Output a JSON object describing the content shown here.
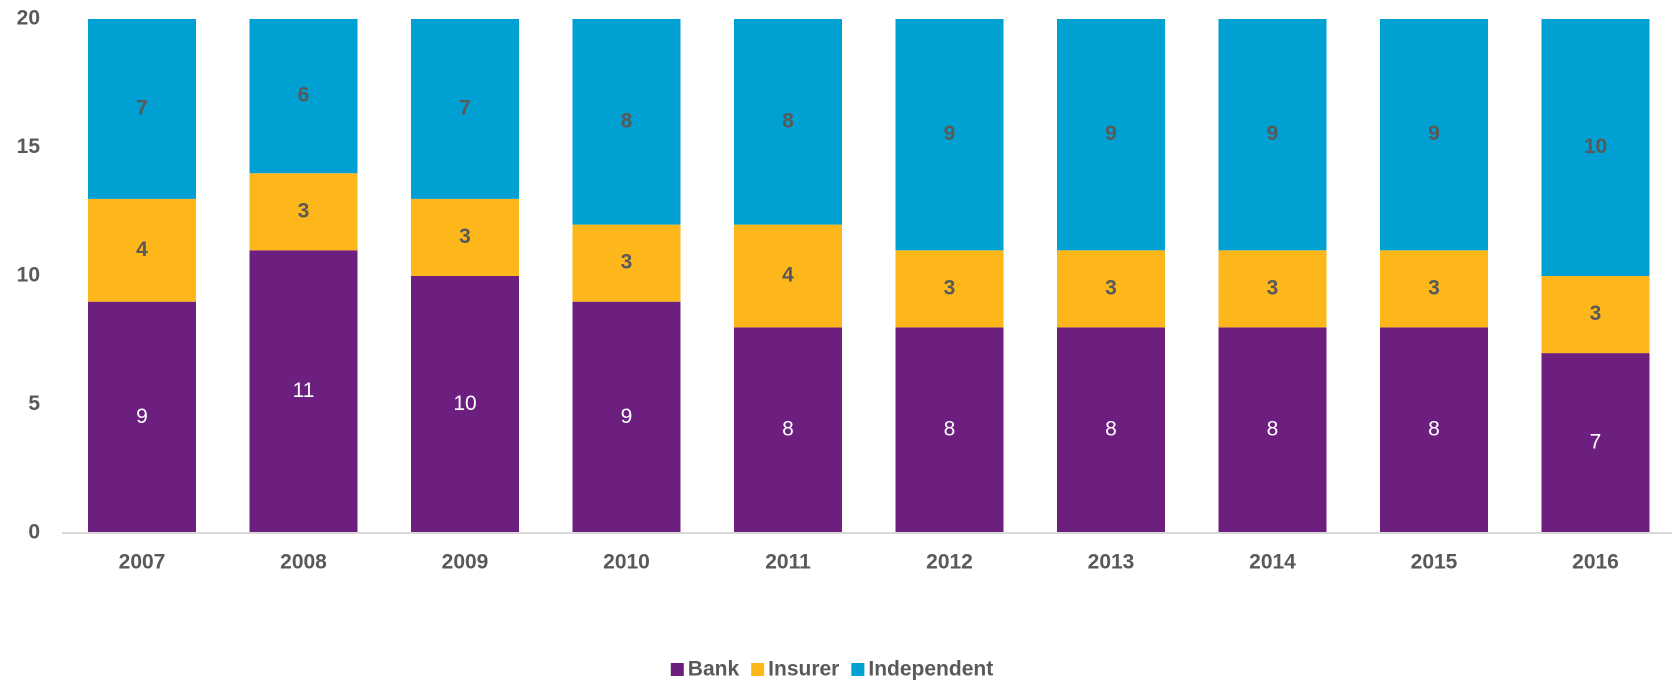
{
  "chart_data": {
    "type": "stacked_bar",
    "categories": [
      "2007",
      "2008",
      "2009",
      "2010",
      "2011",
      "2012",
      "2013",
      "2014",
      "2015",
      "2016"
    ],
    "series": [
      {
        "name": "Bank",
        "color": "#6c1f7f",
        "values": [
          9,
          11,
          10,
          9,
          8,
          8,
          8,
          8,
          8,
          7
        ]
      },
      {
        "name": "Insurer",
        "color": "#fdb71a",
        "values": [
          4,
          3,
          3,
          3,
          4,
          3,
          3,
          3,
          3,
          3
        ]
      },
      {
        "name": "Independent",
        "color": "#00a0d2",
        "values": [
          7,
          6,
          7,
          8,
          8,
          9,
          9,
          9,
          9,
          10
        ]
      }
    ],
    "ylim": [
      0,
      20
    ],
    "yticks": [
      0,
      5,
      10,
      15,
      20
    ],
    "legend": "bottom"
  }
}
